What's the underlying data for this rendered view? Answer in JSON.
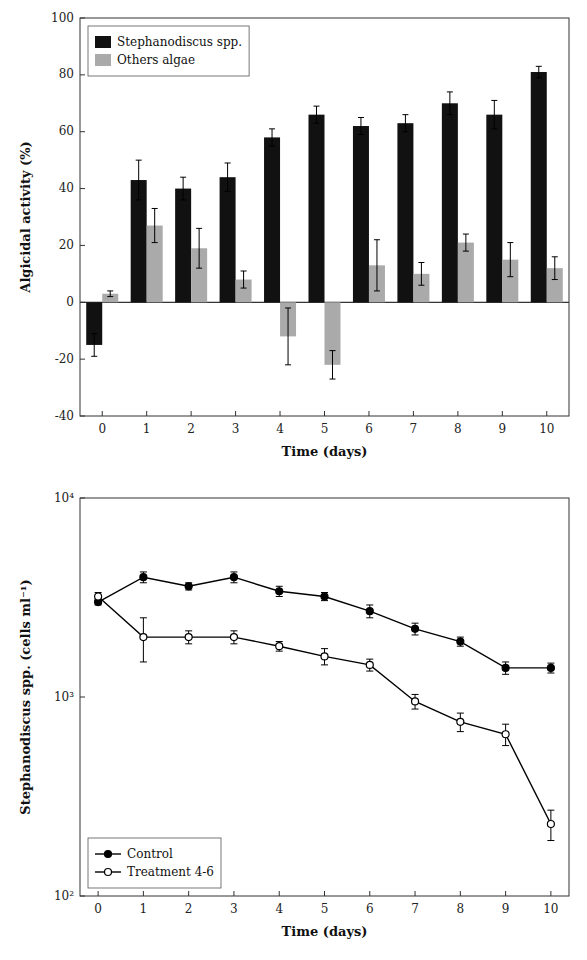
{
  "chart_data": [
    {
      "type": "bar",
      "categories": [
        0,
        1,
        2,
        3,
        4,
        5,
        6,
        7,
        8,
        9,
        10
      ],
      "series": [
        {
          "name": "Stephanodiscus spp.",
          "color": "#111111",
          "values": [
            -15,
            43,
            40,
            44,
            58,
            66,
            62,
            63,
            70,
            66,
            81
          ],
          "errors": [
            4,
            7,
            4,
            5,
            3,
            3,
            3,
            3,
            4,
            5,
            2
          ]
        },
        {
          "name": "Others algae",
          "color": "#aaaaaa",
          "values": [
            3,
            27,
            19,
            8,
            -12,
            -22,
            13,
            10,
            21,
            15,
            12
          ],
          "errors": [
            1,
            6,
            7,
            3,
            10,
            5,
            9,
            4,
            3,
            6,
            4
          ]
        }
      ],
      "xlabel": "Time (days)",
      "ylabel": "Algicidal activity (%)",
      "ylim": [
        -40,
        100
      ],
      "yticks": [
        -40,
        -20,
        0,
        20,
        40,
        60,
        80,
        100
      ],
      "grid": false,
      "legend": "upper left"
    },
    {
      "type": "line",
      "x": [
        0,
        1,
        2,
        3,
        4,
        5,
        6,
        7,
        8,
        9,
        10
      ],
      "series": [
        {
          "name": "Control",
          "color": "#000000",
          "marker": "circle",
          "line_style": "solid",
          "values": [
            3000,
            4000,
            3600,
            4000,
            3400,
            3200,
            2700,
            2200,
            1900,
            1400,
            1400
          ],
          "errors": [
            100,
            250,
            150,
            250,
            200,
            150,
            200,
            150,
            100,
            100,
            80
          ]
        },
        {
          "name": "Treatment 4-6",
          "color": "#000000",
          "marker": "open-circle",
          "line_style": "solid",
          "values": [
            3200,
            2000,
            2000,
            2000,
            1800,
            1600,
            1450,
            950,
            750,
            650,
            230
          ],
          "errors": [
            150,
            500,
            150,
            150,
            100,
            150,
            100,
            80,
            80,
            80,
            40
          ]
        }
      ],
      "xlabel": "Time (days)",
      "ylabel": "Stephanodiscus spp. (cells ml⁻¹)",
      "log": "y",
      "xlim": [
        -0.4,
        10.4
      ],
      "xticks": [
        0,
        1,
        2,
        3,
        4,
        5,
        6,
        7,
        8,
        9,
        10
      ],
      "ylim": [
        100,
        10000
      ],
      "yticks": [
        {
          "value": 100,
          "label": "10²"
        },
        {
          "value": 1000,
          "label": "10³"
        },
        {
          "value": 10000,
          "label": "10⁴"
        }
      ],
      "grid": false,
      "legend": "lower left"
    }
  ]
}
